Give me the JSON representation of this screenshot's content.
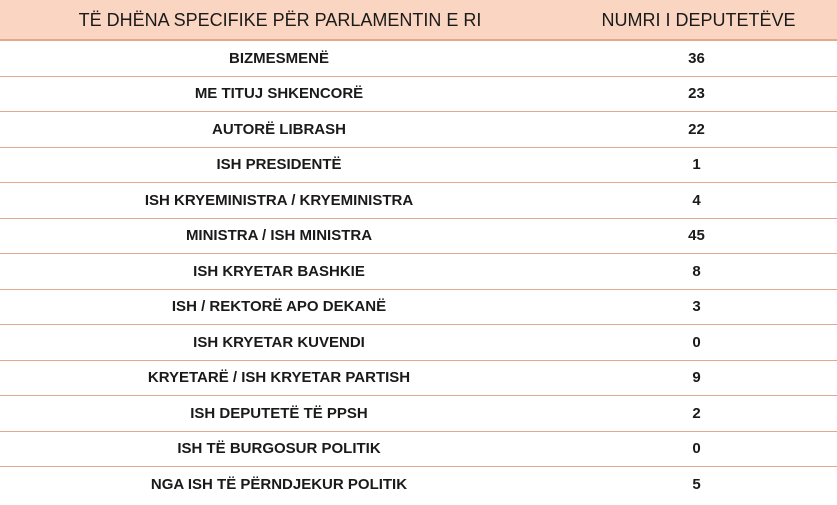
{
  "table": {
    "headers": [
      "TË DHËNA SPECIFIKE PËR PARLAMENTIN E RI",
      "NUMRI I DEPUTETËVE"
    ],
    "rows": [
      {
        "label": "BIZMESMENË",
        "value": "36"
      },
      {
        "label": "ME TITUJ SHKENCORË",
        "value": "23"
      },
      {
        "label": "AUTORË LIBRASH",
        "value": "22"
      },
      {
        "label": "ISH PRESIDENTË",
        "value": "1"
      },
      {
        "label": "ISH KRYEMINISTRA / KRYEMINISTRA",
        "value": "4"
      },
      {
        "label": "MINISTRA / ISH MINISTRA",
        "value": "45"
      },
      {
        "label": "ISH KRYETAR BASHKIE",
        "value": "8"
      },
      {
        "label": "ISH / REKTORË APO DEKANË",
        "value": "3"
      },
      {
        "label": "ISH KRYETAR KUVENDI",
        "value": "0"
      },
      {
        "label": "KRYETARË / ISH KRYETAR PARTISH",
        "value": "9"
      },
      {
        "label": "ISH DEPUTETË TË PPSH",
        "value": "2"
      },
      {
        "label": "ISH TË BURGOSUR POLITIK",
        "value": "0"
      },
      {
        "label": "NGA ISH TË PËRNDJEKUR POLITIK",
        "value": "5"
      }
    ]
  },
  "colors": {
    "header_background": "#fad6c2",
    "row_divider": "#e3a98f",
    "text": "#1a1a1a"
  }
}
